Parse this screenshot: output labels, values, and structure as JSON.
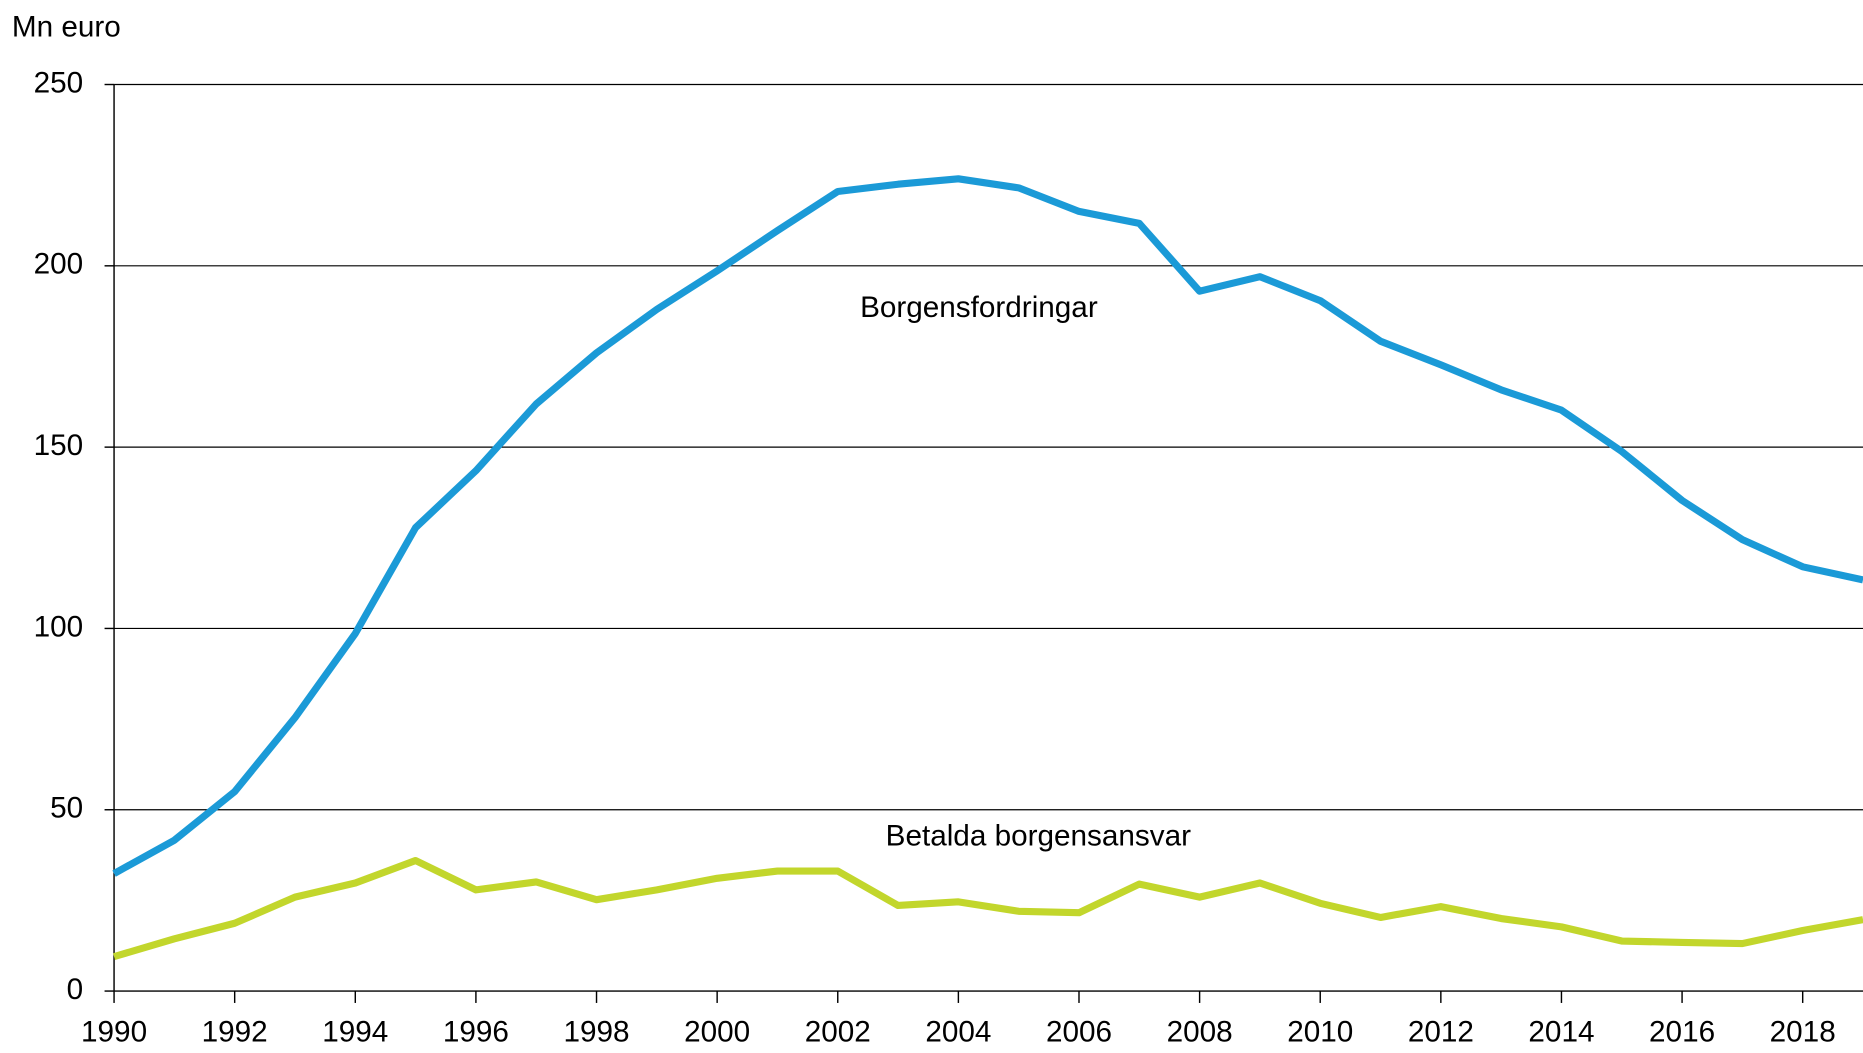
{
  "chart_data": {
    "type": "line",
    "y_label": "Mn euro",
    "x": [
      1990,
      1991,
      1992,
      1993,
      1994,
      1995,
      1996,
      1997,
      1998,
      1999,
      2000,
      2001,
      2002,
      2003,
      2004,
      2005,
      2006,
      2007,
      2008,
      2009,
      2010,
      2011,
      2012,
      2013,
      2014,
      2015,
      2016,
      2017,
      2018,
      2019
    ],
    "series": [
      {
        "name": "Borgensfordringar",
        "color": "#1b9ad7",
        "values": [
          32.4,
          41.6,
          55,
          75.4,
          98.6,
          127.8,
          143.5,
          161.9,
          176,
          188,
          198.6,
          209.7,
          220.5,
          222.5,
          224,
          221.5,
          215,
          211.7,
          193,
          197,
          190.4,
          179.2,
          172.7,
          165.8,
          160.2,
          148.8,
          135.3,
          124.5,
          117,
          113.4
        ]
      },
      {
        "name": "Betalda borgensansvar",
        "color": "#c2d62c",
        "values": [
          9.5,
          14.4,
          18.7,
          25.9,
          29.8,
          36,
          27.9,
          30.1,
          25.2,
          27.9,
          31.1,
          33.1,
          33.1,
          23.6,
          24.6,
          22,
          21.6,
          29.5,
          25.9,
          29.8,
          24.2,
          20.3,
          23.3,
          20,
          17.7,
          13.8,
          13.4,
          13.1,
          16.7,
          19.7
        ]
      }
    ],
    "xlim": [
      1990,
      2019
    ],
    "xticks": [
      1990,
      1992,
      1994,
      1996,
      1998,
      2000,
      2002,
      2004,
      2006,
      2008,
      2010,
      2012,
      2014,
      2016,
      2018
    ],
    "ylim": [
      0,
      250
    ],
    "yticks": [
      0,
      50,
      100,
      150,
      200,
      250
    ],
    "grid": true
  }
}
